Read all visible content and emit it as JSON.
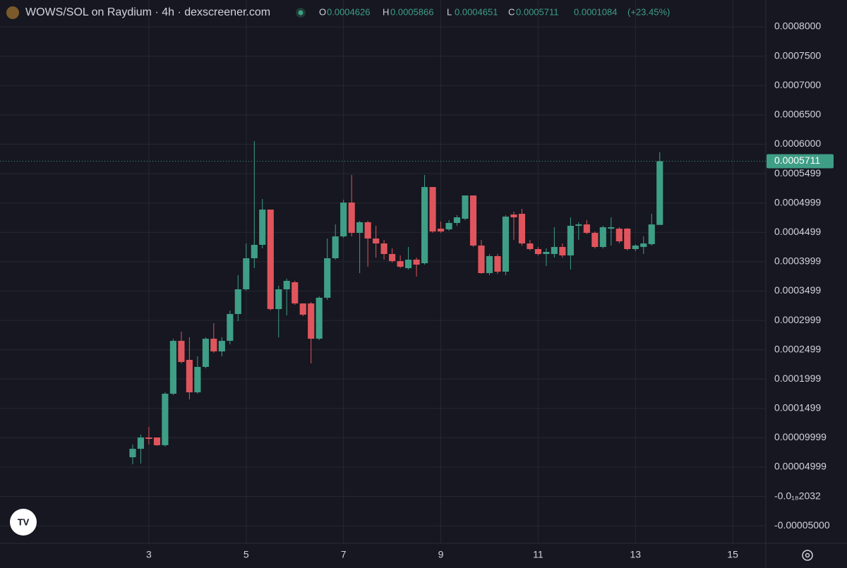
{
  "chart_data": {
    "type": "candlestick",
    "title": "WOWS/SOL on Raydium · 4h · dexscreener.com",
    "ohlc": [
      {
        "label": "O",
        "value": 0.0004626
      },
      {
        "label": "H",
        "value": 0.0005866
      },
      {
        "label": "L",
        "value": 0.0004651
      },
      {
        "label": "C",
        "value": 0.0005711
      }
    ],
    "change": 0.0001084,
    "change_label": "(+23.45%)",
    "last_price": 0.0005711,
    "up_color": "#3f9e86",
    "down_color": "#e0555d",
    "x": [
      2.667,
      2.833,
      3,
      3.167,
      3.333,
      3.5,
      3.667,
      3.833,
      4,
      4.167,
      4.333,
      4.5,
      4.667,
      4.833,
      5,
      5.167,
      5.333,
      5.5,
      5.667,
      5.833,
      6,
      6.167,
      6.333,
      6.5,
      6.667,
      6.833,
      7,
      7.167,
      7.333,
      7.5,
      7.667,
      7.833,
      8,
      8.167,
      8.333,
      8.5,
      8.667,
      8.833,
      9,
      9.167,
      9.333,
      9.5,
      9.667,
      9.833,
      10,
      10.167,
      10.333,
      10.5,
      10.667,
      10.833,
      11,
      11.167,
      11.333,
      11.5,
      11.667,
      11.833,
      12,
      12.167,
      12.333,
      12.5,
      12.667,
      12.833,
      13,
      13.167,
      13.333,
      13.5
    ],
    "open": [
      6.68e-05,
      8.12e-05,
      0.0001005,
      0.0001005,
      8.73e-05,
      0.000175,
      0.0002651,
      0.0002327,
      0.0001774,
      0.0002207,
      0.0002687,
      0.0002471,
      0.0002651,
      0.0003108,
      0.0003529,
      0.0004058,
      0.0004286,
      0.0004887,
      0.0003192,
      0.0003529,
      0.0003649,
      0.0003288,
      0.0003288,
      0.0002687,
      0.0003385,
      0.0004058,
      0.000443,
      0.0005007,
      0.000449,
      0.0004671,
      0.0004394,
      0.000431,
      0.000413,
      0.0004009,
      0.0003889,
      0.0004034,
      0.0003973,
      0.0005271,
      0.0004562,
      0.000455,
      0.0004659,
      0.0004731,
      0.0005127,
      0.0004274,
      0.0003805,
      0.0004094,
      0.0003829,
      0.0004803,
      0.0004815,
      0.000431,
      0.0004214,
      0.000413,
      0.000413,
      0.000425,
      0.0004106,
      0.0004611,
      0.0004634,
      0.000449,
      0.000425,
      0.0004562,
      0.0004562,
      0.0004562,
      0.0004214,
      0.000425,
      0.0004298,
      0.0004626
    ],
    "high": [
      8.85e-05,
      0.0001053,
      0.0001185,
      0.0001005,
      0.0001774,
      0.0002687,
      0.0002808,
      0.0002711,
      0.0002387,
      0.0002711,
      0.0002952,
      0.0002711,
      0.0003168,
      0.0003769,
      0.000431,
      0.0006053,
      0.0005067,
      0.0004887,
      0.0003589,
      0.0003709,
      0.0003673,
      0.0003288,
      0.0003312,
      0.0003409,
      0.0004394,
      0.0004634,
      0.0005055,
      0.0005476,
      0.0004695,
      0.0004695,
      0.0004611,
      0.000437,
      0.0004226,
      0.0004106,
      0.000425,
      0.000407,
      0.0005476,
      0.0005271,
      0.0004683,
      0.0004707,
      0.0004791,
      0.0005127,
      0.0005127,
      0.000437,
      0.000413,
      0.000413,
      0.0004791,
      0.0004851,
      0.0004899,
      0.000437,
      0.000425,
      0.0004226,
      0.0004586,
      0.000431,
      0.0004755,
      0.0004671,
      0.0004707,
      0.0004514,
      0.0004611,
      0.0004755,
      0.0004586,
      0.0004574,
      0.0004298,
      0.000443,
      0.0004815,
      0.0005866
    ],
    "low": [
      5.48e-05,
      5.6e-05,
      8.85e-05,
      8.61e-05,
      8.49e-05,
      0.0001726,
      0.0002267,
      0.0001654,
      0.000175,
      0.0002183,
      0.0002447,
      0.0002387,
      0.0002591,
      0.0002988,
      0.0003505,
      0.0003889,
      0.0004226,
      0.0003168,
      0.0002711,
      0.0003084,
      0.0003264,
      0.0003072,
      0.0002267,
      0.0002663,
      0.0003349,
      0.0004034,
      0.0004406,
      0.000443,
      0.0003805,
      0.0003913,
      0.000407,
      0.0004034,
      0.0003985,
      0.0003889,
      0.0003865,
      0.0003745,
      0.0003949,
      0.000449,
      0.000449,
      0.0004526,
      0.0004611,
      0.0004707,
      0.000425,
      0.0003793,
      0.0003769,
      0.0003793,
      0.0003769,
      0.000437,
      0.0004274,
      0.000419,
      0.0004106,
      0.0003925,
      0.000407,
      0.000407,
      0.0003865,
      0.000437,
      0.0004466,
      0.0004226,
      0.0004226,
      0.0004274,
      0.000431,
      0.000419,
      0.0004178,
      0.000413,
      0.0004274,
      0.0004651
    ],
    "close": [
      8.12e-05,
      0.0001005,
      9.81e-05,
      8.73e-05,
      0.000175,
      0.0002651,
      0.0002291,
      0.0001774,
      0.0002207,
      0.0002687,
      0.0002471,
      0.0002651,
      0.0003108,
      0.0003529,
      0.0004058,
      0.0004286,
      0.0004887,
      0.0003192,
      0.0003529,
      0.0003673,
      0.0003288,
      0.0003096,
      0.0002687,
      0.0003385,
      0.0004058,
      0.000443,
      0.0005007,
      0.000449,
      0.0004671,
      0.0004394,
      0.000431,
      0.000413,
      0.0004009,
      0.0003913,
      0.0004034,
      0.0003949,
      0.0005271,
      0.0004514,
      0.0004514,
      0.0004659,
      0.0004755,
      0.0005127,
      0.0004274,
      0.0003805,
      0.0004094,
      0.0003829,
      0.0004767,
      0.0004755,
      0.000431,
      0.0004214,
      0.000413,
      0.0004166,
      0.000425,
      0.0004106,
      0.0004611,
      0.0004634,
      0.000449,
      0.000425,
      0.0004586,
      0.0004586,
      0.0004346,
      0.0004214,
      0.0004274,
      0.000431,
      0.0004634,
      0.0005711
    ],
    "xlim": [
      -0.06,
      15.68
    ],
    "xticks": [
      3,
      5,
      7,
      9,
      11,
      13,
      15
    ],
    "ylim": [
      -7.98e-05,
      0.0008457
    ],
    "yticks": [
      {
        "value": 0.0008,
        "label": "0.0008000"
      },
      {
        "value": 0.00075,
        "label": "0.0007500"
      },
      {
        "value": 0.0007,
        "label": "0.0007000"
      },
      {
        "value": 0.00065,
        "label": "0.0006500"
      },
      {
        "value": 0.0006,
        "label": "0.0006000"
      },
      0.0005499,
      0.0004999,
      0.0004499,
      0.0003999,
      0.0003499,
      0.0002999,
      0.0002499,
      0.0001999,
      0.0001499,
      9.999e-05,
      4.999e-05,
      {
        "value": -2.032e-20,
        "label": "-0.0₁₈2032"
      },
      {
        "value": -5e-05,
        "label": "-0.00005000"
      }
    ],
    "grid": true
  }
}
